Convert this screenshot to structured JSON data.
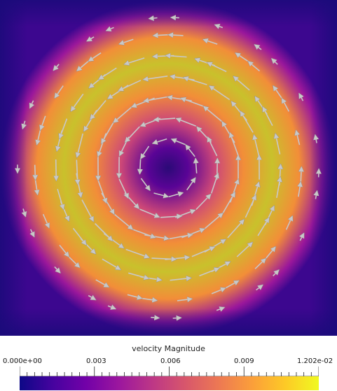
{
  "colormap": [
    "#0d0887",
    "#46039f",
    "#7201a8",
    "#9c179e",
    "#bd3786",
    "#d8576b",
    "#ed7953",
    "#fb9f3a",
    "#fdca26",
    "#f0f921"
  ],
  "field_colors": [
    "#2b0a77",
    "#5a0496",
    "#9a179b",
    "#cc4778",
    "#e6684f",
    "#f28e38",
    "#e9b02f",
    "#c9c12c"
  ],
  "arrow_color": "#c8c8c8",
  "legend": {
    "title": "velocity Magnitude",
    "ticks": [
      "0.000e+00",
      "0.003",
      "0.006",
      "0.009",
      "1.202e-02"
    ]
  }
}
